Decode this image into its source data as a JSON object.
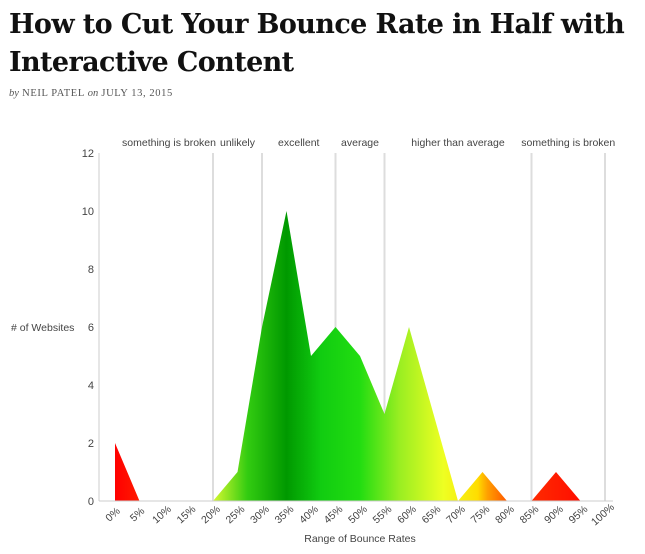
{
  "article": {
    "title": "How to Cut Your Bounce Rate in Half with Interactive Content",
    "by_prefix": "by",
    "author": "NEIL PATEL",
    "on_word": "on",
    "date": "JULY 13, 2015"
  },
  "chart_data": {
    "type": "area",
    "title": "",
    "xlabel": "Range of Bounce Rates",
    "ylabel": "# of Websites",
    "ylim": [
      0,
      12
    ],
    "y_ticks": [
      0,
      2,
      4,
      6,
      8,
      10,
      12
    ],
    "x_categories": [
      "0%",
      "5%",
      "10%",
      "15%",
      "20%",
      "25%",
      "30%",
      "35%",
      "40%",
      "45%",
      "50%",
      "55%",
      "60%",
      "65%",
      "70%",
      "75%",
      "80%",
      "85%",
      "90%",
      "95%",
      "100%"
    ],
    "series": [
      {
        "values": [
          2,
          0,
          0,
          0,
          0,
          1,
          6,
          10,
          5,
          6,
          5,
          3,
          6,
          3,
          0,
          1,
          0,
          0,
          1,
          0,
          0
        ]
      }
    ],
    "zones": [
      {
        "label": "something is broken",
        "from": "0%",
        "to": "20%",
        "color": "#ee0000"
      },
      {
        "label": "unlikely",
        "from": "20%",
        "to": "30%",
        "color": "#ccee33"
      },
      {
        "label": "excellent",
        "from": "30%",
        "to": "45%",
        "color": "#00aa00"
      },
      {
        "label": "average",
        "from": "45%",
        "to": "55%",
        "color": "#11cc11"
      },
      {
        "label": "higher than average",
        "from": "55%",
        "to": "85%",
        "color": "#bbdd22"
      },
      {
        "label": "something is broken",
        "from": "85%",
        "to": "100%",
        "color": "#ee0000"
      }
    ],
    "grid": false,
    "legend": "none"
  }
}
